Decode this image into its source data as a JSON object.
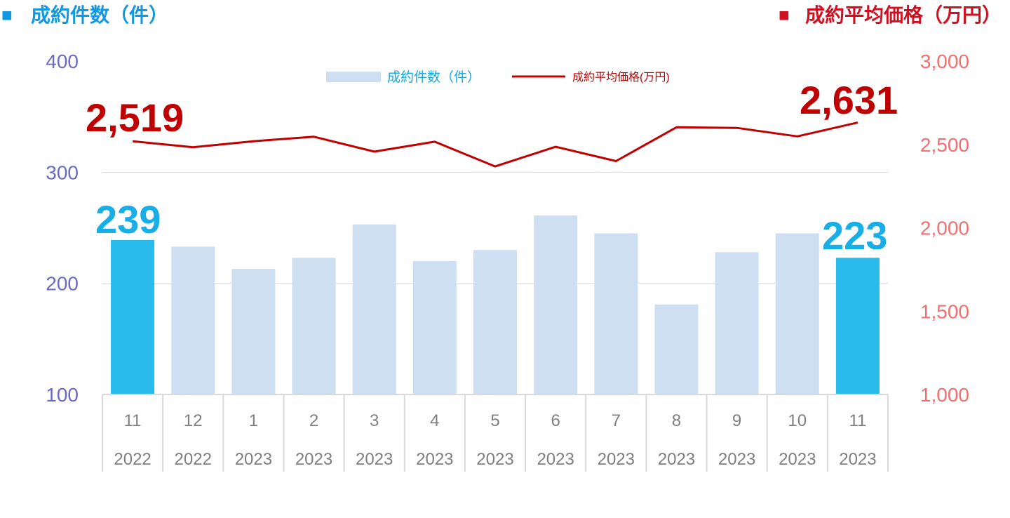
{
  "headers": {
    "left": {
      "marker": "■",
      "text": "成約件数（件）"
    },
    "right": {
      "marker": "■",
      "text": "成約平均価格（万円）"
    }
  },
  "legend": [
    {
      "label": "成約件数（件）",
      "kind": "bar"
    },
    {
      "label": "成約平均価格(万円)",
      "kind": "line"
    }
  ],
  "colors": {
    "header_left": "#1098e0",
    "header_right": "#d01020",
    "left_axis_text": "#6b6bc4",
    "right_axis_text": "#f07070",
    "bar_highlight": "#29bbeb",
    "bar_normal": "#cfdff2",
    "line": "#c00000",
    "line_label": "#c00000",
    "bar_label": "#18aee8",
    "legend_bar_text": "#18a8e0",
    "legend_line_text": "#c00000",
    "grid": "#d9d9d9",
    "tick_text": "#7f7f7f"
  },
  "annotations": {
    "price_first": "2,519",
    "price_last": "2,631",
    "count_first": "239",
    "count_last": "223"
  },
  "chart_data": {
    "type": "bar",
    "categories": [
      "11 2022",
      "12 2022",
      "1 2023",
      "2 2023",
      "3 2023",
      "4 2023",
      "5 2023",
      "6 2023",
      "7 2023",
      "8 2023",
      "9 2023",
      "10 2023",
      "11 2023"
    ],
    "x_month": [
      "11",
      "12",
      "1",
      "2",
      "3",
      "4",
      "5",
      "6",
      "7",
      "8",
      "9",
      "10",
      "11"
    ],
    "x_year": [
      "2022",
      "2022",
      "2023",
      "2023",
      "2023",
      "2023",
      "2023",
      "2023",
      "2023",
      "2023",
      "2023",
      "2023",
      "2023"
    ],
    "series": [
      {
        "name": "成約件数（件）",
        "type": "bar",
        "axis": "left",
        "values": [
          239,
          233,
          213,
          223,
          253,
          220,
          230,
          261,
          245,
          181,
          228,
          245,
          223
        ],
        "highlight": [
          true,
          false,
          false,
          false,
          false,
          false,
          false,
          false,
          false,
          false,
          false,
          false,
          true
        ]
      },
      {
        "name": "成約平均価格(万円)",
        "type": "line",
        "axis": "right",
        "values": [
          2519,
          2483,
          2519,
          2546,
          2457,
          2516,
          2368,
          2486,
          2400,
          2603,
          2599,
          2548,
          2631
        ]
      }
    ],
    "y_left": {
      "min": 100,
      "max": 400,
      "ticks": [
        "100",
        "200",
        "300",
        "400"
      ],
      "tick_values": [
        100,
        200,
        300,
        400
      ]
    },
    "y_right": {
      "min": 1000,
      "max": 3000,
      "ticks": [
        "1,000",
        "1,500",
        "2,000",
        "2,500",
        "3,000"
      ],
      "tick_values": [
        1000,
        1500,
        2000,
        2500,
        3000
      ]
    },
    "grid": true,
    "legend_position": "top-center"
  }
}
